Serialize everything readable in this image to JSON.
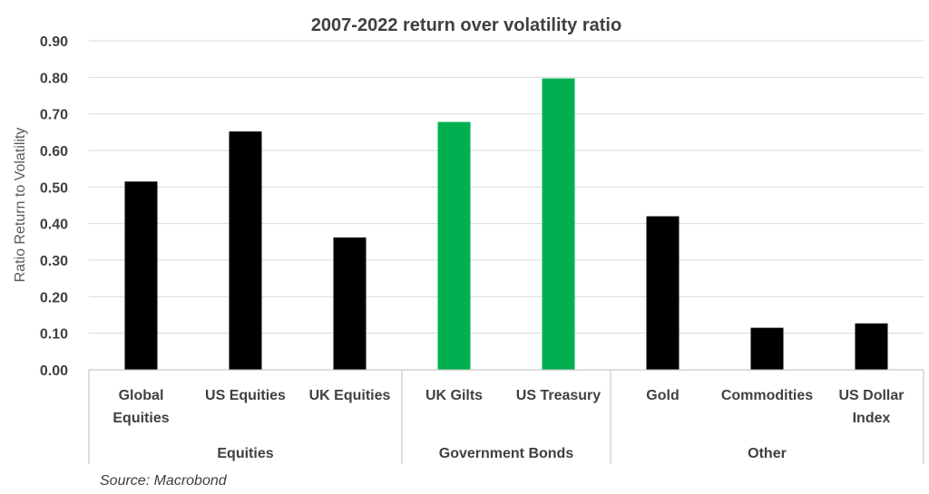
{
  "chart_data": {
    "type": "bar",
    "title": "2007-2022 return over volatility ratio",
    "ylabel": "Ratio Return to Volatility",
    "xlabel": "",
    "ylim": [
      0,
      0.9
    ],
    "yticks": [
      "0.00",
      "0.10",
      "0.20",
      "0.30",
      "0.40",
      "0.50",
      "0.60",
      "0.70",
      "0.80",
      "0.90"
    ],
    "grid": true,
    "categories": [
      {
        "label": [
          "Global",
          "Equities"
        ],
        "value": 0.515,
        "color": "#000000"
      },
      {
        "label": [
          "US  Equities"
        ],
        "value": 0.652,
        "color": "#000000"
      },
      {
        "label": [
          "UK  Equities"
        ],
        "value": 0.362,
        "color": "#000000"
      },
      {
        "label": [
          "UK Gilts"
        ],
        "value": 0.678,
        "color": "#00b050"
      },
      {
        "label": [
          "US Treasury"
        ],
        "value": 0.797,
        "color": "#00b050"
      },
      {
        "label": [
          "Gold"
        ],
        "value": 0.42,
        "color": "#000000"
      },
      {
        "label": [
          "Commodities"
        ],
        "value": 0.115,
        "color": "#000000"
      },
      {
        "label": [
          "US Dollar",
          "Index"
        ],
        "value": 0.127,
        "color": "#000000"
      }
    ],
    "groups": [
      {
        "label": "Equities",
        "start": 0,
        "end": 2
      },
      {
        "label": "Government Bonds",
        "start": 3,
        "end": 4
      },
      {
        "label": "Other",
        "start": 5,
        "end": 7
      }
    ],
    "source": "Source: Macrobond"
  }
}
